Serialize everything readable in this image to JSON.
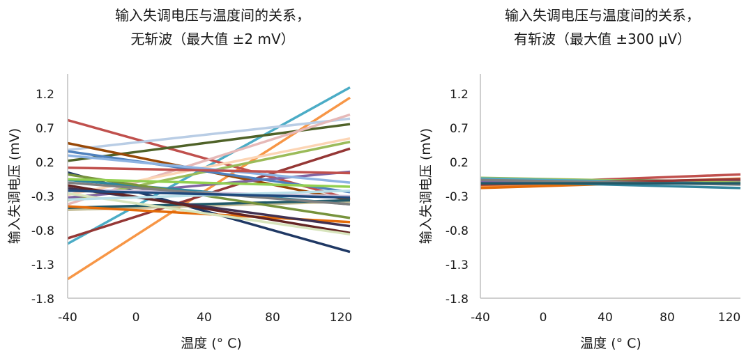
{
  "chart_data": [
    {
      "type": "line",
      "title": [
        "输入失调电压与温度间的关系，",
        "无斩波（最大值 ±2 mV）"
      ],
      "xlabel": "温度 (° C)",
      "ylabel": "输入失调电压 (mV)",
      "xlim": [
        -40,
        125
      ],
      "ylim": [
        -1.8,
        1.5
      ],
      "xticks": [
        -40,
        0,
        40,
        80,
        120
      ],
      "xtick_labels": [
        "-40",
        "0",
        "40",
        "80",
        "120"
      ],
      "yticks": [
        1.2,
        0.7,
        0.2,
        -0.3,
        -0.8,
        -1.3,
        -1.8
      ],
      "ytick_labels": [
        "1.2",
        "0.7",
        "0.2",
        "-0.3",
        "-0.8",
        "-1.3",
        "-1.8"
      ],
      "grid": false,
      "x": [
        -40,
        125
      ],
      "series": [
        {
          "color": "#4bacc6",
          "values": [
            -1.0,
            1.3
          ]
        },
        {
          "color": "#f79646",
          "values": [
            -1.52,
            1.15
          ]
        },
        {
          "color": "#1f3864",
          "values": [
            0.05,
            -1.12
          ]
        },
        {
          "color": "#c0504d",
          "values": [
            0.82,
            -0.34
          ]
        },
        {
          "color": "#b9cde5",
          "values": [
            0.38,
            0.84
          ]
        },
        {
          "color": "#4f6228",
          "values": [
            0.22,
            0.76
          ]
        },
        {
          "color": "#e6b9b8",
          "values": [
            -0.42,
            0.9
          ]
        },
        {
          "color": "#953735",
          "values": [
            -0.92,
            0.4
          ]
        },
        {
          "color": "#fcd5b5",
          "values": [
            -0.28,
            0.55
          ]
        },
        {
          "color": "#9bbb59",
          "values": [
            -0.36,
            0.5
          ]
        },
        {
          "color": "#984807",
          "values": [
            0.48,
            -0.36
          ]
        },
        {
          "color": "#8064a2",
          "values": [
            -0.32,
            0.06
          ]
        },
        {
          "color": "#c4bd97",
          "values": [
            -0.5,
            -0.38
          ]
        },
        {
          "color": "#215968",
          "values": [
            -0.47,
            -0.36
          ]
        },
        {
          "color": "#31859c",
          "values": [
            -0.06,
            -0.42
          ]
        },
        {
          "color": "#77933c",
          "values": [
            0.02,
            -0.62
          ]
        },
        {
          "color": "#e46c0a",
          "values": [
            -0.45,
            -0.68
          ]
        },
        {
          "color": "#ccc1da",
          "values": [
            -0.2,
            -0.3
          ]
        },
        {
          "color": "#403151",
          "values": [
            -0.18,
            -0.74
          ]
        },
        {
          "color": "#632423",
          "values": [
            -0.14,
            -0.84
          ]
        },
        {
          "color": "#d7e4bc",
          "values": [
            -0.26,
            -0.86
          ]
        },
        {
          "color": "#4f81bd",
          "values": [
            0.36,
            -0.24
          ]
        },
        {
          "color": "#8db3e2",
          "values": [
            0.3,
            -0.1
          ]
        },
        {
          "color": "#7f7f7f",
          "values": [
            -0.1,
            -0.42
          ]
        },
        {
          "color": "#b7dee8",
          "values": [
            -0.35,
            -0.22
          ]
        },
        {
          "color": "#c0504d",
          "values": [
            0.12,
            0.04
          ]
        },
        {
          "color": "#92d050",
          "values": [
            -0.05,
            -0.16
          ]
        },
        {
          "color": "#1f497d",
          "values": [
            -0.22,
            -0.32
          ]
        }
      ]
    },
    {
      "type": "line",
      "title": [
        "输入失调电压与温度间的关系，",
        "有斩波（最大值 ±300 μV）"
      ],
      "xlabel": "温度 (° C)",
      "ylabel": "输入失调电压 (mV)",
      "xlim": [
        -40,
        125
      ],
      "ylim": [
        -1.8,
        1.5
      ],
      "xticks": [
        -40,
        0,
        40,
        80,
        120
      ],
      "xtick_labels": [
        "-40",
        "0",
        "40",
        "80",
        "120"
      ],
      "yticks": [
        1.2,
        0.7,
        0.2,
        -0.3,
        -0.8,
        -1.3,
        -1.8
      ],
      "ytick_labels": [
        "1.2",
        "0.7",
        "0.2",
        "-0.3",
        "-0.8",
        "-1.3",
        "-1.8"
      ],
      "grid": false,
      "x": [
        -40,
        125
      ],
      "series": [
        {
          "color": "#f79646",
          "values": [
            -0.16,
            -0.04
          ]
        },
        {
          "color": "#e46c0a",
          "values": [
            -0.18,
            -0.06
          ]
        },
        {
          "color": "#c0504d",
          "values": [
            -0.12,
            0.02
          ]
        },
        {
          "color": "#31859c",
          "values": [
            -0.08,
            -0.18
          ]
        },
        {
          "color": "#1f3864",
          "values": [
            -0.1,
            -0.07
          ]
        },
        {
          "color": "#4f6228",
          "values": [
            -0.05,
            -0.08
          ]
        },
        {
          "color": "#8064a2",
          "values": [
            -0.09,
            -0.09
          ]
        },
        {
          "color": "#9bbb59",
          "values": [
            -0.03,
            -0.1
          ]
        },
        {
          "color": "#4bacc6",
          "values": [
            -0.04,
            -0.12
          ]
        },
        {
          "color": "#953735",
          "values": [
            -0.13,
            -0.05
          ]
        },
        {
          "color": "#7f7f7f",
          "values": [
            -0.06,
            -0.13
          ]
        },
        {
          "color": "#215968",
          "values": [
            -0.11,
            -0.11
          ]
        }
      ]
    }
  ]
}
